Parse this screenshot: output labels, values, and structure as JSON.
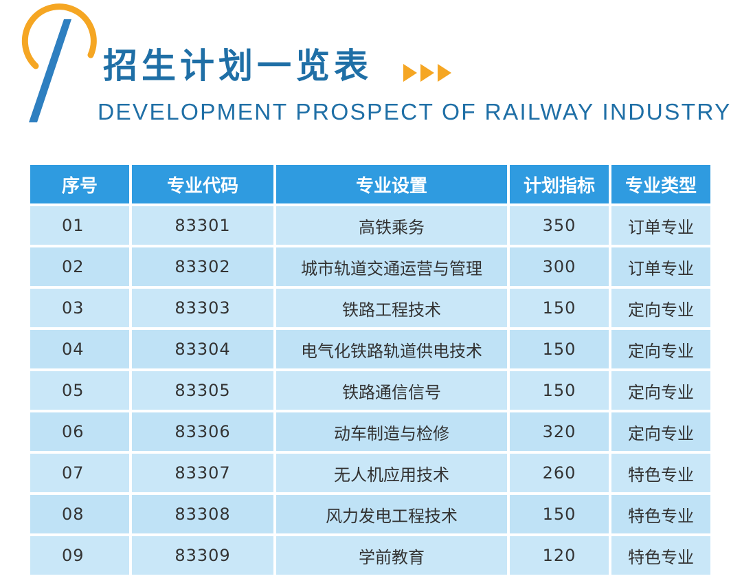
{
  "header": {
    "title": "招生计划一览表",
    "subtitle": "DEVELOPMENT PROSPECT OF RAILWAY INDUSTRY",
    "accent_orange": "#f5a623",
    "accent_blue": "#1f6fa6"
  },
  "table": {
    "headers": [
      "序号",
      "专业代码",
      "专业设置",
      "计划指标",
      "专业类型"
    ],
    "rows": [
      [
        "01",
        "83301",
        "高铁乘务",
        "350",
        "订单专业"
      ],
      [
        "02",
        "83302",
        "城市轨道交通运营与管理",
        "300",
        "订单专业"
      ],
      [
        "03",
        "83303",
        "铁路工程技术",
        "150",
        "定向专业"
      ],
      [
        "04",
        "83304",
        "电气化铁路轨道供电技术",
        "150",
        "定向专业"
      ],
      [
        "05",
        "83305",
        "铁路通信信号",
        "150",
        "定向专业"
      ],
      [
        "06",
        "83306",
        "动车制造与检修",
        "320",
        "定向专业"
      ],
      [
        "07",
        "83307",
        "无人机应用技术",
        "260",
        "特色专业"
      ],
      [
        "08",
        "83308",
        "风力发电工程技术",
        "150",
        "特色专业"
      ],
      [
        "09",
        "83309",
        "学前教育",
        "120",
        "特色专业"
      ]
    ]
  }
}
